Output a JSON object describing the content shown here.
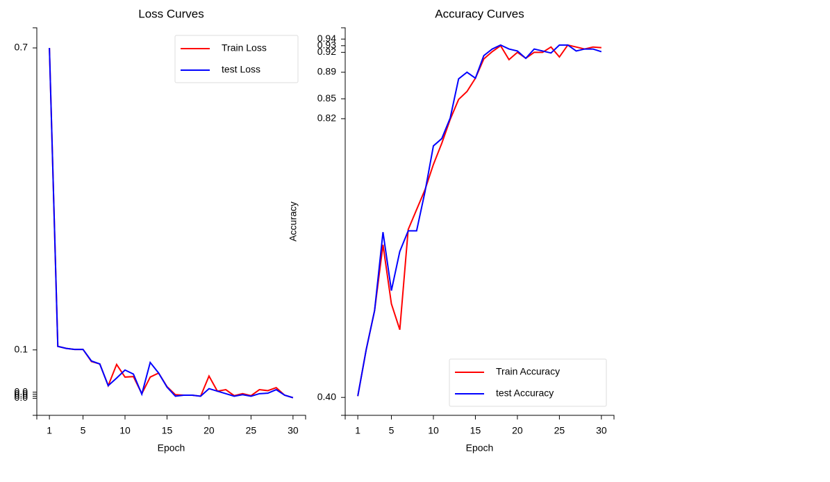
{
  "chart_data": [
    {
      "type": "line",
      "title": "Loss Curves",
      "xlabel": "Epoch",
      "x": [
        1,
        2,
        3,
        4,
        5,
        6,
        7,
        8,
        9,
        10,
        11,
        12,
        13,
        14,
        15,
        16,
        17,
        18,
        19,
        20,
        21,
        22,
        23,
        24,
        25,
        26,
        27,
        28,
        29,
        30
      ],
      "xlim": [
        -0.5,
        31.5
      ],
      "xticks": [
        1,
        5,
        10,
        15,
        20,
        25,
        30
      ],
      "ylim": [
        -0.03,
        0.74
      ],
      "yticks": [
        0.7,
        0.1,
        {
          "value": 0.016,
          "label": "0.0"
        },
        {
          "value": 0.012,
          "label": "0.0"
        },
        {
          "value": 0.008,
          "label": "0.0"
        },
        {
          "value": 0.004,
          "label": "0.0"
        }
      ],
      "legend": "upper right",
      "series": [
        {
          "name": "Train Loss",
          "color": "#ff0000",
          "values": [
            0.7,
            0.107,
            0.103,
            0.101,
            0.101,
            0.077,
            0.072,
            0.029,
            0.071,
            0.046,
            0.047,
            0.013,
            0.046,
            0.054,
            0.027,
            0.011,
            0.01,
            0.01,
            0.008,
            0.048,
            0.018,
            0.021,
            0.009,
            0.013,
            0.009,
            0.021,
            0.019,
            0.025,
            0.01,
            0.005
          ]
        },
        {
          "name": "test Loss",
          "color": "#0000ff",
          "values": [
            0.7,
            0.107,
            0.103,
            0.101,
            0.101,
            0.078,
            0.072,
            0.029,
            0.044,
            0.06,
            0.052,
            0.012,
            0.075,
            0.054,
            0.026,
            0.008,
            0.01,
            0.01,
            0.008,
            0.023,
            0.018,
            0.013,
            0.008,
            0.011,
            0.008,
            0.013,
            0.014,
            0.021,
            0.01,
            0.005
          ]
        }
      ]
    },
    {
      "type": "line",
      "title": "Accuracy Curves",
      "xlabel": "Epoch",
      "ylabel": "Accuracy",
      "x": [
        1,
        2,
        3,
        4,
        5,
        6,
        7,
        8,
        9,
        10,
        11,
        12,
        13,
        14,
        15,
        16,
        17,
        18,
        19,
        20,
        21,
        22,
        23,
        24,
        25,
        26,
        27,
        28,
        29,
        30
      ],
      "xlim": [
        -0.5,
        31.5
      ],
      "xticks": [
        1,
        5,
        10,
        15,
        20,
        25,
        30
      ],
      "ylim": [
        0.373,
        0.957
      ],
      "yticks": [
        0.94,
        0.93,
        0.92,
        0.89,
        0.85,
        0.82,
        {
          "value": 0.4,
          "label": "0.40"
        }
      ],
      "legend": "lower right",
      "series": [
        {
          "name": "Train Accuracy",
          "color": "#ff0000",
          "values": [
            0.402,
            0.472,
            0.531,
            0.63,
            0.541,
            0.502,
            0.653,
            0.683,
            0.713,
            0.751,
            0.783,
            0.819,
            0.849,
            0.861,
            0.881,
            0.91,
            0.921,
            0.93,
            0.909,
            0.92,
            0.911,
            0.92,
            0.92,
            0.928,
            0.913,
            0.931,
            0.928,
            0.925,
            0.928,
            0.927
          ]
        },
        {
          "name": "test Accuracy",
          "color": "#0000ff",
          "values": [
            0.402,
            0.472,
            0.531,
            0.649,
            0.561,
            0.62,
            0.651,
            0.651,
            0.71,
            0.779,
            0.79,
            0.821,
            0.88,
            0.89,
            0.881,
            0.915,
            0.925,
            0.931,
            0.925,
            0.922,
            0.911,
            0.925,
            0.922,
            0.919,
            0.931,
            0.931,
            0.922,
            0.925,
            0.925,
            0.921
          ]
        }
      ]
    }
  ]
}
